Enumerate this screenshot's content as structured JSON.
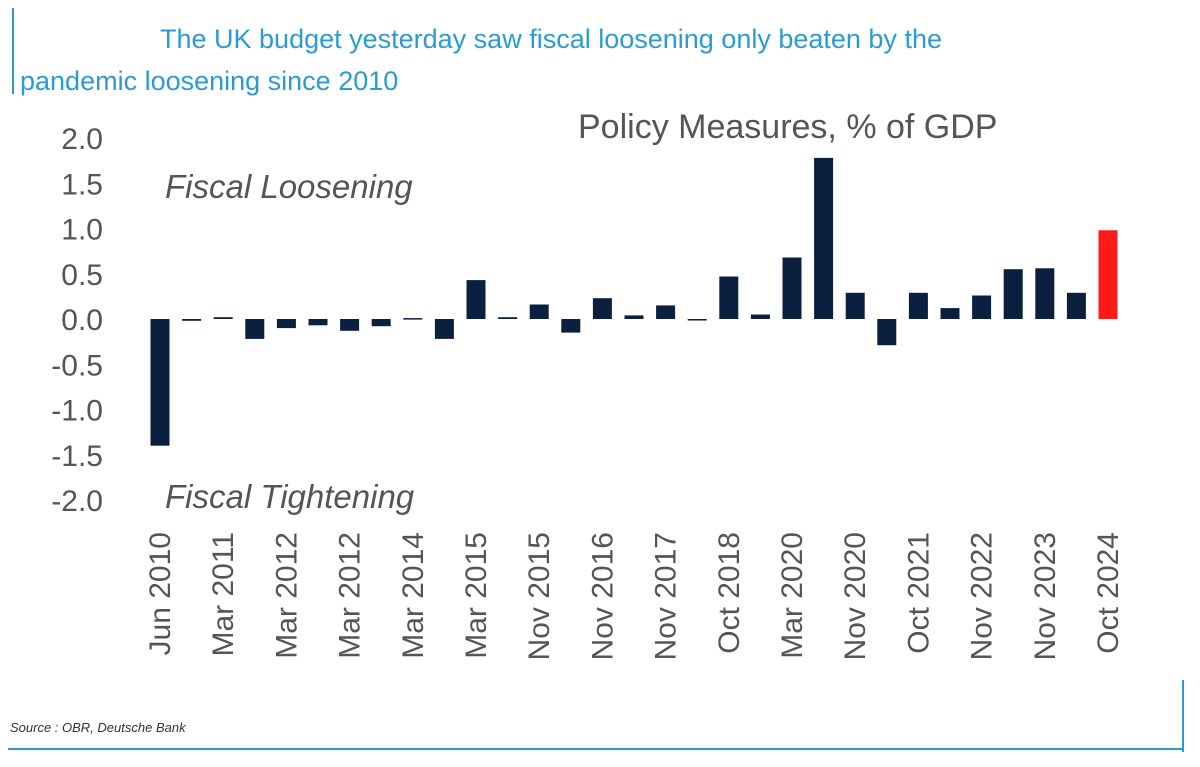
{
  "header": {
    "line1": "The UK budget yesterday saw fiscal loosening only beaten by the",
    "line2": "pandemic loosening since 2010"
  },
  "footer": {
    "source": "Source : OBR, Deutsche Bank"
  },
  "colors": {
    "bar": "#0b1f3f",
    "highlight": "#ff1a1a",
    "accent": "#2b9bd6"
  },
  "chart_data": {
    "type": "bar",
    "title": "Policy Measures, % of GDP",
    "annotations": [
      "Fiscal Loosening",
      "Fiscal Tightening"
    ],
    "ylim": [
      -2.0,
      2.0
    ],
    "yticks": [
      "2.0",
      "1.5",
      "1.0",
      "0.5",
      "0.0",
      "-0.5",
      "-1.0",
      "-1.5",
      "-2.0"
    ],
    "ytick_values": [
      2.0,
      1.5,
      1.0,
      0.5,
      0.0,
      -0.5,
      -1.0,
      -1.5,
      -2.0
    ],
    "x_tick_labels": [
      "Jun 2010",
      "Mar 2011",
      "Mar 2012",
      "Mar 2012",
      "Mar 2014",
      "Mar 2015",
      "Nov 2015",
      "Nov 2016",
      "Nov 2017",
      "Oct 2018",
      "Mar 2020",
      "Nov 2020",
      "Oct 2021",
      "Nov 2022",
      "Nov 2023",
      "Oct 2024"
    ],
    "values": [
      -1.4,
      -0.02,
      0.02,
      -0.22,
      -0.1,
      -0.07,
      -0.13,
      -0.08,
      0.01,
      -0.22,
      0.43,
      0.02,
      0.16,
      -0.15,
      0.23,
      0.04,
      0.15,
      0.0,
      0.47,
      0.05,
      0.68,
      1.78,
      0.29,
      -0.29,
      0.29,
      0.12,
      0.26,
      0.55,
      0.56,
      0.29,
      0.98
    ],
    "highlight_index": 30,
    "grid": false,
    "legend": "none"
  }
}
